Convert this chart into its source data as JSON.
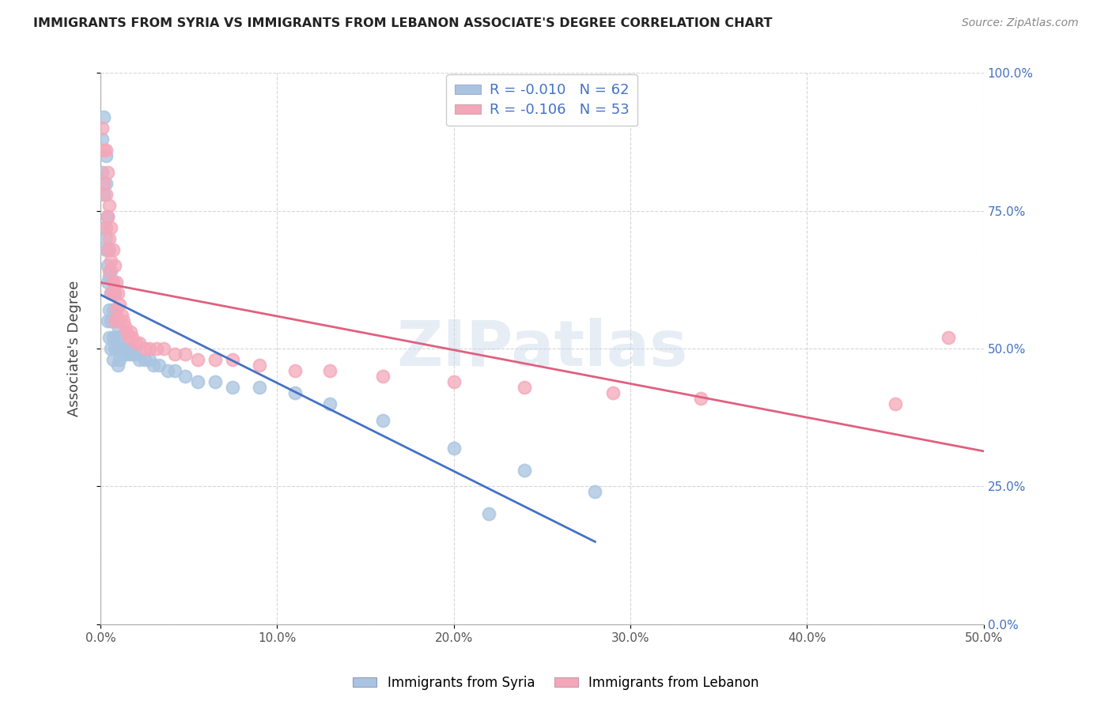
{
  "title": "IMMIGRANTS FROM SYRIA VS IMMIGRANTS FROM LEBANON ASSOCIATE'S DEGREE CORRELATION CHART",
  "source": "Source: ZipAtlas.com",
  "ylabel": "Associate's Degree",
  "xlim": [
    0,
    0.5
  ],
  "ylim": [
    0,
    1.0
  ],
  "syria_color": "#a8c4e0",
  "lebanon_color": "#f4a7b9",
  "syria_R": -0.01,
  "syria_N": 62,
  "lebanon_R": -0.106,
  "lebanon_N": 53,
  "syria_line_color": "#4472c4",
  "lebanon_line_color": "#e06080",
  "syria_line_style": "-",
  "lebanon_line_style": "-",
  "legend_label_syria": "Immigrants from Syria",
  "legend_label_lebanon": "Immigrants from Lebanon",
  "watermark": "ZIPatlas",
  "syria_x": [
    0.001,
    0.001,
    0.002,
    0.002,
    0.002,
    0.003,
    0.003,
    0.003,
    0.003,
    0.004,
    0.004,
    0.004,
    0.004,
    0.005,
    0.005,
    0.005,
    0.005,
    0.006,
    0.006,
    0.006,
    0.006,
    0.007,
    0.007,
    0.007,
    0.007,
    0.008,
    0.008,
    0.008,
    0.009,
    0.009,
    0.01,
    0.01,
    0.01,
    0.011,
    0.011,
    0.012,
    0.013,
    0.014,
    0.015,
    0.016,
    0.017,
    0.018,
    0.02,
    0.022,
    0.025,
    0.028,
    0.03,
    0.033,
    0.038,
    0.042,
    0.048,
    0.055,
    0.065,
    0.075,
    0.09,
    0.11,
    0.13,
    0.16,
    0.2,
    0.24,
    0.28,
    0.22
  ],
  "syria_y": [
    0.88,
    0.82,
    0.78,
    0.72,
    0.92,
    0.85,
    0.8,
    0.7,
    0.68,
    0.74,
    0.65,
    0.62,
    0.55,
    0.68,
    0.63,
    0.57,
    0.52,
    0.64,
    0.6,
    0.55,
    0.5,
    0.62,
    0.57,
    0.52,
    0.48,
    0.6,
    0.55,
    0.5,
    0.57,
    0.52,
    0.54,
    0.5,
    0.47,
    0.52,
    0.48,
    0.5,
    0.5,
    0.49,
    0.5,
    0.49,
    0.5,
    0.49,
    0.49,
    0.48,
    0.48,
    0.48,
    0.47,
    0.47,
    0.46,
    0.46,
    0.45,
    0.44,
    0.44,
    0.43,
    0.43,
    0.42,
    0.4,
    0.37,
    0.32,
    0.28,
    0.24,
    0.2
  ],
  "lebanon_x": [
    0.001,
    0.002,
    0.002,
    0.003,
    0.003,
    0.003,
    0.004,
    0.004,
    0.004,
    0.005,
    0.005,
    0.005,
    0.006,
    0.006,
    0.006,
    0.007,
    0.007,
    0.008,
    0.008,
    0.008,
    0.009,
    0.009,
    0.01,
    0.01,
    0.011,
    0.012,
    0.013,
    0.014,
    0.015,
    0.016,
    0.017,
    0.018,
    0.02,
    0.022,
    0.025,
    0.028,
    0.032,
    0.036,
    0.042,
    0.048,
    0.055,
    0.065,
    0.075,
    0.09,
    0.11,
    0.13,
    0.16,
    0.2,
    0.24,
    0.29,
    0.34,
    0.45,
    0.48
  ],
  "lebanon_y": [
    0.9,
    0.86,
    0.8,
    0.86,
    0.78,
    0.72,
    0.82,
    0.74,
    0.68,
    0.76,
    0.7,
    0.64,
    0.72,
    0.66,
    0.6,
    0.68,
    0.62,
    0.65,
    0.6,
    0.55,
    0.62,
    0.57,
    0.6,
    0.55,
    0.58,
    0.56,
    0.55,
    0.54,
    0.53,
    0.52,
    0.53,
    0.52,
    0.51,
    0.51,
    0.5,
    0.5,
    0.5,
    0.5,
    0.49,
    0.49,
    0.48,
    0.48,
    0.48,
    0.47,
    0.46,
    0.46,
    0.45,
    0.44,
    0.43,
    0.42,
    0.41,
    0.4,
    0.52
  ]
}
